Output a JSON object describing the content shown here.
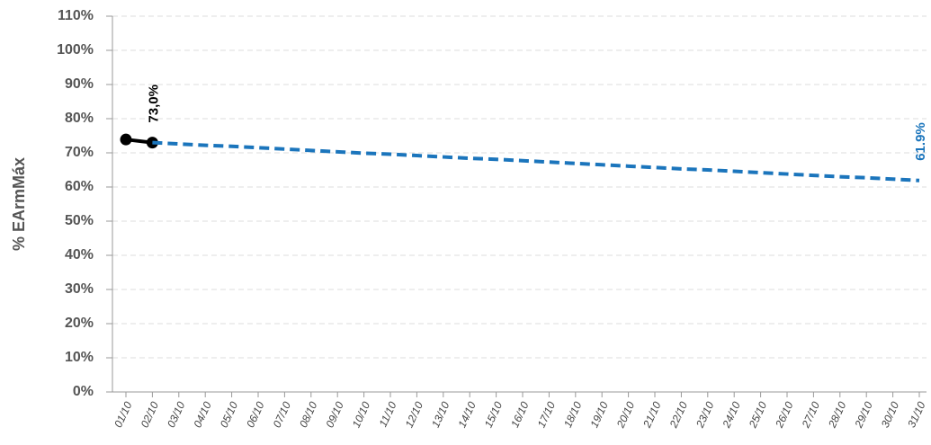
{
  "chart_data": {
    "type": "line",
    "y_label": "% EArmMáx",
    "categories": [
      "01/10",
      "02/10",
      "03/10",
      "04/10",
      "05/10",
      "06/10",
      "07/10",
      "08/10",
      "09/10",
      "10/10",
      "11/10",
      "12/10",
      "13/10",
      "14/10",
      "15/10",
      "16/10",
      "17/10",
      "18/10",
      "19/10",
      "20/10",
      "21/10",
      "22/10",
      "23/10",
      "24/10",
      "25/10",
      "26/10",
      "27/10",
      "28/10",
      "29/10",
      "30/10",
      "31/10"
    ],
    "series": [
      {
        "color": "#000000",
        "dash": false,
        "markers": true,
        "values": [
          73.9,
          73.0,
          null,
          null,
          null,
          null,
          null,
          null,
          null,
          null,
          null,
          null,
          null,
          null,
          null,
          null,
          null,
          null,
          null,
          null,
          null,
          null,
          null,
          null,
          null,
          null,
          null,
          null,
          null,
          null,
          null
        ],
        "value_labels": [
          null,
          "73,0%",
          null,
          null,
          null,
          null,
          null,
          null,
          null,
          null,
          null,
          null,
          null,
          null,
          null,
          null,
          null,
          null,
          null,
          null,
          null,
          null,
          null,
          null,
          null,
          null,
          null,
          null,
          null,
          null,
          null
        ]
      },
      {
        "color": "#1b75bc",
        "dash": true,
        "markers": false,
        "values": [
          null,
          73.0,
          72.6,
          72.2,
          71.9,
          71.5,
          71.1,
          70.7,
          70.3,
          69.9,
          69.6,
          69.2,
          68.8,
          68.4,
          68.1,
          67.7,
          67.3,
          66.9,
          66.5,
          66.1,
          65.7,
          65.3,
          65.0,
          64.6,
          64.2,
          63.8,
          63.4,
          63.0,
          62.7,
          62.3,
          61.9
        ],
        "value_labels": [
          null,
          null,
          null,
          null,
          null,
          null,
          null,
          null,
          null,
          null,
          null,
          null,
          null,
          null,
          null,
          null,
          null,
          null,
          null,
          null,
          null,
          null,
          null,
          null,
          null,
          null,
          null,
          null,
          null,
          null,
          "61.9%"
        ]
      }
    ],
    "ylim": [
      0,
      110
    ],
    "yticks": [
      {
        "value": 0,
        "label": "0%"
      },
      {
        "value": 10,
        "label": "10%"
      },
      {
        "value": 20,
        "label": "20%"
      },
      {
        "value": 30,
        "label": "30%"
      },
      {
        "value": 40,
        "label": "40%"
      },
      {
        "value": 50,
        "label": "50%"
      },
      {
        "value": 60,
        "label": "60%"
      },
      {
        "value": 70,
        "label": "70%"
      },
      {
        "value": 80,
        "label": "80%"
      },
      {
        "value": 90,
        "label": "90%"
      },
      {
        "value": 100,
        "label": "100%"
      },
      {
        "value": 110,
        "label": "110%"
      }
    ],
    "grid": true
  }
}
